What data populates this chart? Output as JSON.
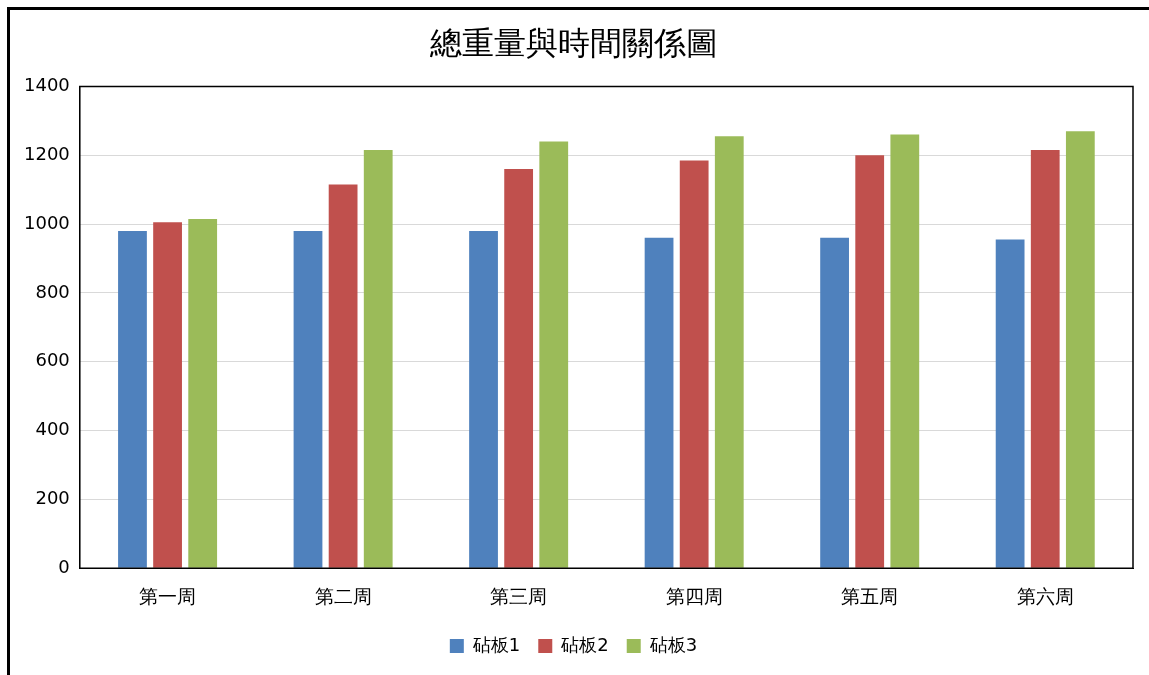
{
  "chart_data": {
    "type": "bar",
    "title": "總重量與時間關係圖",
    "categories": [
      "第一周",
      "第二周",
      "第三周",
      "第四周",
      "第五周",
      "第六周"
    ],
    "series": [
      {
        "name": "砧板1",
        "color": "#4f81bd",
        "values": [
          980,
          980,
          980,
          960,
          960,
          955
        ]
      },
      {
        "name": "砧板2",
        "color": "#c0504d",
        "values": [
          1005,
          1115,
          1160,
          1185,
          1200,
          1215
        ]
      },
      {
        "name": "砧板3",
        "color": "#9bbb59",
        "values": [
          1015,
          1215,
          1240,
          1255,
          1260,
          1270
        ]
      }
    ],
    "ylim": [
      0,
      1400
    ],
    "yticks": [
      0,
      200,
      400,
      600,
      800,
      1000,
      1200,
      1400
    ],
    "grid": "y",
    "legend": "bottom"
  }
}
